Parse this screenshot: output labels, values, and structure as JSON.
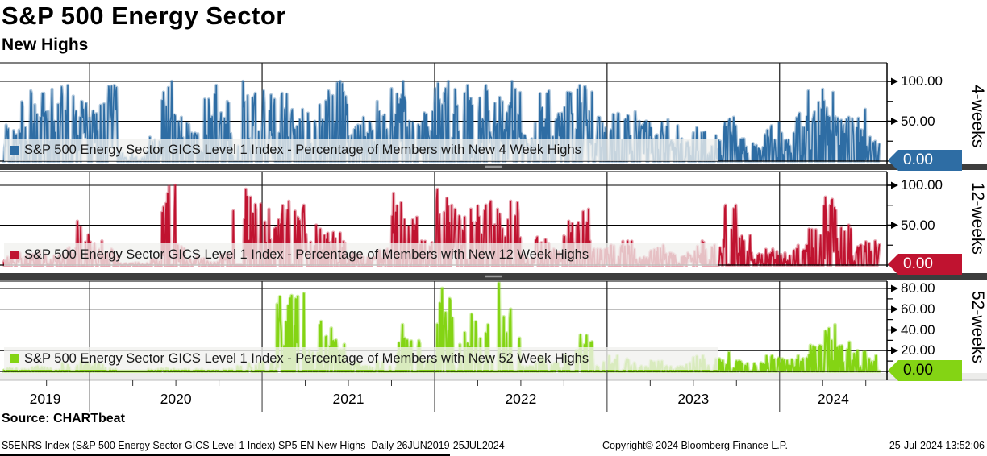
{
  "header": {
    "title": "S&P 500 Energy Sector",
    "subtitle": "New Highs"
  },
  "source_line": "Source: CHARTbeat",
  "footer": {
    "left": "S5ENRS Index (S&P 500 Energy Sector GICS Level 1 Index) SP5 EN New Highs  Daily 26JUN2019-25JUL2024",
    "center": "Copyright© 2024 Bloomberg Finance L.P.",
    "right": "25-Jul-2024 13:52:06"
  },
  "x_axis": {
    "years": [
      "2019",
      "2020",
      "2021",
      "2022",
      "2023",
      "2024"
    ],
    "start": "26JUN2019",
    "end": "25JUL2024",
    "frequency": "Daily"
  },
  "chart_data": [
    {
      "type": "line",
      "panel_label": "4-weeks",
      "legend": "S&P 500 Energy Sector GICS Level 1 Index - Percentage of Members with New 4 Week Highs",
      "color": "#2e6da4",
      "ylim": [
        0,
        123
      ],
      "y_ticks": {
        "values": [
          100,
          50
        ],
        "labels": [
          "100.00",
          "50.00"
        ]
      },
      "y_minor_ticks": [
        75,
        25,
        0
      ],
      "last_value_label": "0.00",
      "last_value": 0.0,
      "months_start": "2019-07",
      "months_end": "2024-07",
      "spike_density": 0.55,
      "monthly_peak_values": [
        45,
        88,
        85,
        90,
        95,
        75,
        70,
        95,
        10,
        5,
        30,
        100,
        55,
        35,
        95,
        75,
        100,
        85,
        88,
        85,
        65,
        60,
        88,
        100,
        45,
        55,
        75,
        100,
        50,
        62,
        100,
        90,
        95,
        95,
        80,
        100,
        35,
        88,
        60,
        90,
        95,
        55,
        60,
        62,
        50,
        48,
        52,
        28,
        42,
        32,
        55,
        28,
        22,
        48,
        35,
        60,
        88,
        90,
        55,
        65,
        30
      ]
    },
    {
      "type": "line",
      "panel_label": "12-weeks",
      "legend": "S&P 500 Energy Sector GICS Level 1 Index - Percentage of Members with New 12 Week Highs",
      "color": "#c01330",
      "ylim": [
        0,
        117
      ],
      "y_ticks": {
        "values": [
          100,
          50
        ],
        "labels": [
          "100.00",
          "50.00"
        ]
      },
      "y_minor_ticks": [
        75,
        25,
        0
      ],
      "last_value_label": "0.00",
      "last_value": 0.0,
      "months_start": "2019-07",
      "months_end": "2024-07",
      "spike_density": 0.45,
      "monthly_peak_values": [
        10,
        15,
        18,
        12,
        22,
        55,
        30,
        20,
        2,
        3,
        8,
        100,
        25,
        10,
        5,
        15,
        95,
        85,
        70,
        80,
        75,
        50,
        45,
        40,
        15,
        10,
        20,
        90,
        60,
        30,
        95,
        75,
        70,
        80,
        70,
        80,
        12,
        35,
        20,
        55,
        70,
        20,
        25,
        30,
        10,
        25,
        15,
        15,
        30,
        25,
        75,
        45,
        15,
        20,
        15,
        25,
        45,
        85,
        50,
        25,
        30
      ]
    },
    {
      "type": "line",
      "panel_label": "52-weeks",
      "legend": "S&P 500 Energy Sector GICS Level 1 Index - Percentage of Members with New 52 Week Highs",
      "color": "#84d414",
      "ylim": [
        0,
        87
      ],
      "y_ticks": {
        "values": [
          80,
          60,
          40,
          20
        ],
        "labels": [
          "80.00",
          "60.00",
          "40.00",
          "20.00"
        ]
      },
      "y_minor_ticks": [
        70,
        50,
        30,
        10,
        0
      ],
      "last_value_label": "0.00",
      "last_value": 0.0,
      "months_start": "2019-07",
      "months_end": "2024-07",
      "spike_density": 0.34,
      "monthly_peak_values": [
        3,
        2,
        5,
        3,
        8,
        10,
        8,
        3,
        0,
        0,
        2,
        3,
        2,
        2,
        1,
        2,
        5,
        8,
        10,
        72,
        75,
        20,
        48,
        30,
        8,
        5,
        10,
        45,
        30,
        12,
        80,
        70,
        55,
        45,
        85,
        60,
        5,
        15,
        8,
        20,
        35,
        12,
        15,
        12,
        5,
        10,
        5,
        8,
        15,
        12,
        18,
        10,
        8,
        15,
        12,
        15,
        25,
        45,
        28,
        20,
        15
      ]
    }
  ]
}
